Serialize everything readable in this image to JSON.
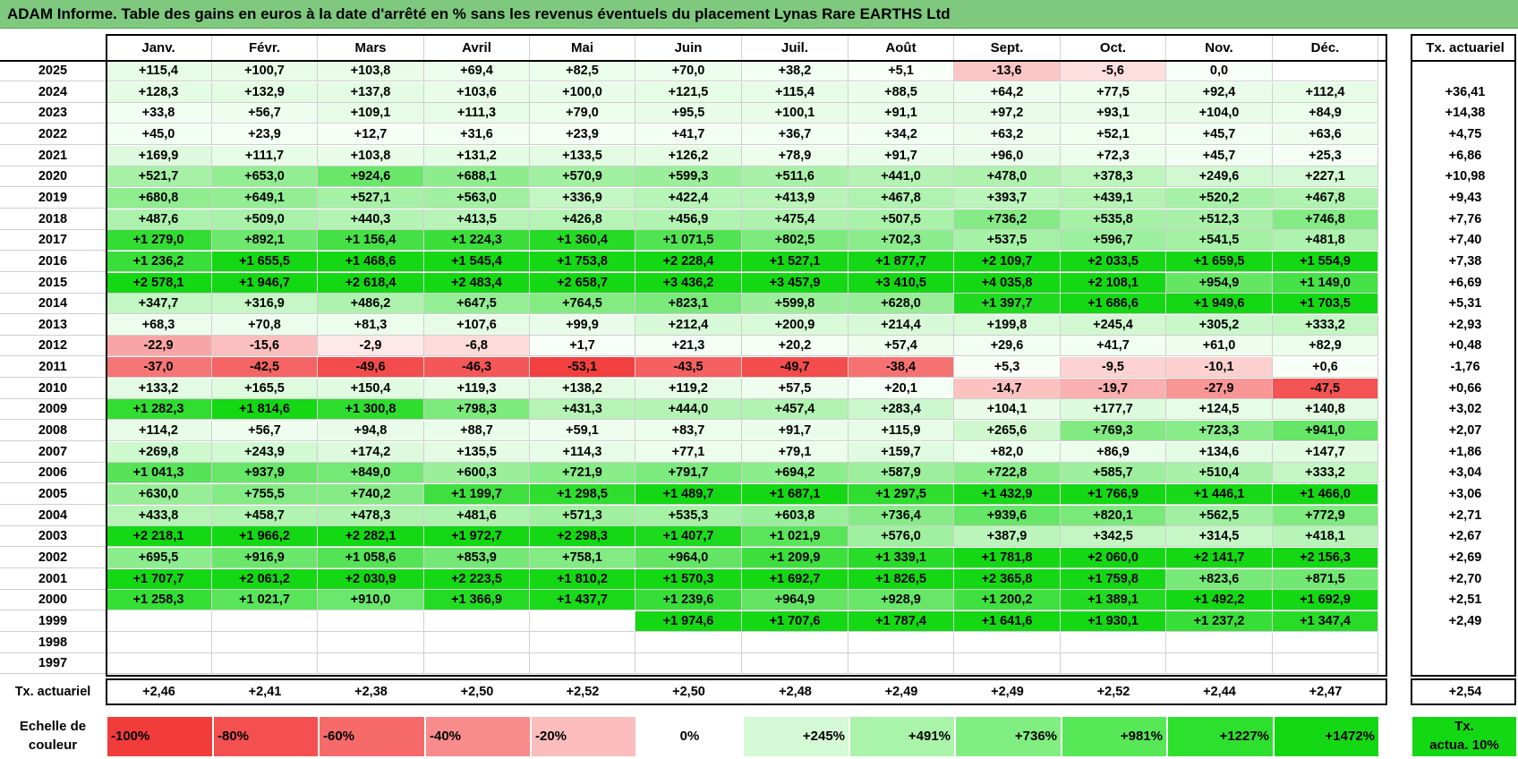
{
  "title": "ADAM Informe. Table des gains en euros à la date d'arrêté en % sans les revenus éventuels du placement Lynas Rare EARTHS Ltd",
  "months": [
    "Janv.",
    "Févr.",
    "Mars",
    "Avril",
    "Mai",
    "Juin",
    "Juil.",
    "Août",
    "Sept.",
    "Oct.",
    "Nov.",
    "Déc."
  ],
  "tx_header": "Tx. actuariel",
  "rows": [
    {
      "year": "2025",
      "values": [
        "+115,4",
        "+100,7",
        "+103,8",
        "+69,4",
        "+82,5",
        "+70,0",
        "+38,2",
        "+5,1",
        "-13,6",
        "-5,6",
        "0,0",
        ""
      ],
      "tx": ""
    },
    {
      "year": "2024",
      "values": [
        "+128,3",
        "+132,9",
        "+137,8",
        "+103,6",
        "+100,0",
        "+121,5",
        "+115,4",
        "+88,5",
        "+64,2",
        "+77,5",
        "+92,4",
        "+112,4"
      ],
      "tx": "+36,41"
    },
    {
      "year": "2023",
      "values": [
        "+33,8",
        "+56,7",
        "+109,1",
        "+111,3",
        "+79,0",
        "+95,5",
        "+100,1",
        "+91,1",
        "+97,2",
        "+93,1",
        "+104,0",
        "+84,9"
      ],
      "tx": "+14,38"
    },
    {
      "year": "2022",
      "values": [
        "+45,0",
        "+23,9",
        "+12,7",
        "+31,6",
        "+23,9",
        "+41,7",
        "+36,7",
        "+34,2",
        "+63,2",
        "+52,1",
        "+45,7",
        "+63,6"
      ],
      "tx": "+4,75"
    },
    {
      "year": "2021",
      "values": [
        "+169,9",
        "+111,7",
        "+103,8",
        "+131,2",
        "+133,5",
        "+126,2",
        "+78,9",
        "+91,7",
        "+96,0",
        "+72,3",
        "+45,7",
        "+25,3"
      ],
      "tx": "+6,86"
    },
    {
      "year": "2020",
      "values": [
        "+521,7",
        "+653,0",
        "+924,6",
        "+688,1",
        "+570,9",
        "+599,3",
        "+511,6",
        "+441,0",
        "+478,0",
        "+378,3",
        "+249,6",
        "+227,1"
      ],
      "tx": "+10,98"
    },
    {
      "year": "2019",
      "values": [
        "+680,8",
        "+649,1",
        "+527,1",
        "+563,0",
        "+336,9",
        "+422,4",
        "+413,9",
        "+467,8",
        "+393,7",
        "+439,1",
        "+520,2",
        "+467,8"
      ],
      "tx": "+9,43"
    },
    {
      "year": "2018",
      "values": [
        "+487,6",
        "+509,0",
        "+440,3",
        "+413,5",
        "+426,8",
        "+456,9",
        "+475,4",
        "+507,5",
        "+736,2",
        "+535,8",
        "+512,3",
        "+746,8"
      ],
      "tx": "+7,76"
    },
    {
      "year": "2017",
      "values": [
        "+1 279,0",
        "+892,1",
        "+1 156,4",
        "+1 224,3",
        "+1 360,4",
        "+1 071,5",
        "+802,5",
        "+702,3",
        "+537,5",
        "+596,7",
        "+541,5",
        "+481,8"
      ],
      "tx": "+7,40"
    },
    {
      "year": "2016",
      "values": [
        "+1 236,2",
        "+1 655,5",
        "+1 468,6",
        "+1 545,4",
        "+1 753,8",
        "+2 228,4",
        "+1 527,1",
        "+1 877,7",
        "+2 109,7",
        "+2 033,5",
        "+1 659,5",
        "+1 554,9"
      ],
      "tx": "+7,38"
    },
    {
      "year": "2015",
      "values": [
        "+2 578,1",
        "+1 946,7",
        "+2 618,4",
        "+2 483,4",
        "+2 658,7",
        "+3 436,2",
        "+3 457,9",
        "+3 410,5",
        "+4 035,8",
        "+2 108,1",
        "+954,9",
        "+1 149,0"
      ],
      "tx": "+6,69"
    },
    {
      "year": "2014",
      "values": [
        "+347,7",
        "+316,9",
        "+486,2",
        "+647,5",
        "+764,5",
        "+823,1",
        "+599,8",
        "+628,0",
        "+1 397,7",
        "+1 686,6",
        "+1 949,6",
        "+1 703,5"
      ],
      "tx": "+5,31"
    },
    {
      "year": "2013",
      "values": [
        "+68,3",
        "+70,8",
        "+81,3",
        "+107,6",
        "+99,9",
        "+212,4",
        "+200,9",
        "+214,4",
        "+199,8",
        "+245,4",
        "+305,2",
        "+333,2"
      ],
      "tx": "+2,93"
    },
    {
      "year": "2012",
      "values": [
        "-22,9",
        "-15,6",
        "-2,9",
        "-6,8",
        "+1,7",
        "+21,3",
        "+20,2",
        "+57,4",
        "+29,6",
        "+41,7",
        "+61,0",
        "+82,9"
      ],
      "tx": "+0,48"
    },
    {
      "year": "2011",
      "values": [
        "-37,0",
        "-42,5",
        "-49,6",
        "-46,3",
        "-53,1",
        "-43,5",
        "-49,7",
        "-38,4",
        "+5,3",
        "-9,5",
        "-10,1",
        "+0,6"
      ],
      "tx": "-1,76"
    },
    {
      "year": "2010",
      "values": [
        "+133,2",
        "+165,5",
        "+150,4",
        "+119,3",
        "+138,2",
        "+119,2",
        "+57,5",
        "+20,1",
        "-14,7",
        "-19,7",
        "-27,9",
        "-47,5"
      ],
      "tx": "+0,66"
    },
    {
      "year": "2009",
      "values": [
        "+1 282,3",
        "+1 814,6",
        "+1 300,8",
        "+798,3",
        "+431,3",
        "+444,0",
        "+457,4",
        "+283,4",
        "+104,1",
        "+177,7",
        "+124,5",
        "+140,8"
      ],
      "tx": "+3,02"
    },
    {
      "year": "2008",
      "values": [
        "+114,2",
        "+56,7",
        "+94,8",
        "+88,7",
        "+59,1",
        "+83,7",
        "+91,7",
        "+115,9",
        "+265,6",
        "+769,3",
        "+723,3",
        "+941,0"
      ],
      "tx": "+2,07"
    },
    {
      "year": "2007",
      "values": [
        "+269,8",
        "+243,9",
        "+174,2",
        "+135,5",
        "+114,3",
        "+77,1",
        "+79,1",
        "+159,7",
        "+82,0",
        "+86,9",
        "+134,6",
        "+147,7"
      ],
      "tx": "+1,86"
    },
    {
      "year": "2006",
      "values": [
        "+1 041,3",
        "+937,9",
        "+849,0",
        "+600,3",
        "+721,9",
        "+791,7",
        "+694,2",
        "+587,9",
        "+722,8",
        "+585,7",
        "+510,4",
        "+333,2"
      ],
      "tx": "+3,04"
    },
    {
      "year": "2005",
      "values": [
        "+630,0",
        "+755,5",
        "+740,2",
        "+1 199,7",
        "+1 298,5",
        "+1 489,7",
        "+1 687,1",
        "+1 297,5",
        "+1 432,9",
        "+1 766,9",
        "+1 446,1",
        "+1 466,0"
      ],
      "tx": "+3,06"
    },
    {
      "year": "2004",
      "values": [
        "+433,8",
        "+458,7",
        "+478,3",
        "+481,6",
        "+571,3",
        "+535,3",
        "+603,8",
        "+736,4",
        "+939,6",
        "+820,1",
        "+562,5",
        "+772,9"
      ],
      "tx": "+2,71"
    },
    {
      "year": "2003",
      "values": [
        "+2 218,1",
        "+1 966,2",
        "+2 282,1",
        "+1 972,7",
        "+2 298,3",
        "+1 407,7",
        "+1 021,9",
        "+576,0",
        "+387,9",
        "+342,5",
        "+314,5",
        "+418,1"
      ],
      "tx": "+2,67"
    },
    {
      "year": "2002",
      "values": [
        "+695,5",
        "+916,9",
        "+1 058,6",
        "+853,9",
        "+758,1",
        "+964,0",
        "+1 209,9",
        "+1 339,1",
        "+1 781,8",
        "+2 060,0",
        "+2 141,7",
        "+2 156,3"
      ],
      "tx": "+2,69"
    },
    {
      "year": "2001",
      "values": [
        "+1 707,7",
        "+2 061,2",
        "+2 030,9",
        "+2 223,5",
        "+1 810,2",
        "+1 570,3",
        "+1 692,7",
        "+1 826,5",
        "+2 365,8",
        "+1 759,8",
        "+823,6",
        "+871,5"
      ],
      "tx": "+2,70"
    },
    {
      "year": "2000",
      "values": [
        "+1 258,3",
        "+1 021,7",
        "+910,0",
        "+1 366,9",
        "+1 437,7",
        "+1 239,6",
        "+964,9",
        "+928,9",
        "+1 200,2",
        "+1 389,1",
        "+1 492,2",
        "+1 692,9"
      ],
      "tx": "+2,51"
    },
    {
      "year": "1999",
      "values": [
        "",
        "",
        "",
        "",
        "",
        "+1 974,6",
        "+1 707,6",
        "+1 787,4",
        "+1 641,6",
        "+1 930,1",
        "+1 237,2",
        "+1 347,4"
      ],
      "tx": "+2,49"
    },
    {
      "year": "1998",
      "values": [
        "",
        "",
        "",
        "",
        "",
        "",
        "",
        "",
        "",
        "",
        "",
        ""
      ],
      "tx": ""
    },
    {
      "year": "1997",
      "values": [
        "",
        "",
        "",
        "",
        "",
        "",
        "",
        "",
        "",
        "",
        "",
        ""
      ],
      "tx": ""
    }
  ],
  "footer": {
    "label": "Tx. actuariel",
    "values": [
      "+2,46",
      "+2,41",
      "+2,38",
      "+2,50",
      "+2,52",
      "+2,50",
      "+2,48",
      "+2,49",
      "+2,49",
      "+2,52",
      "+2,44",
      "+2,47"
    ],
    "total": "+2,54"
  },
  "scale": {
    "label_line1": "Echelle de",
    "label_line2": "couleur",
    "steps": [
      {
        "text": "-100%",
        "color": "#f23c3c",
        "align": "left"
      },
      {
        "text": "-80%",
        "color": "#f45050",
        "align": "left"
      },
      {
        "text": "-60%",
        "color": "#f66a6a",
        "align": "left"
      },
      {
        "text": "-40%",
        "color": "#f88c8c",
        "align": "left"
      },
      {
        "text": "-20%",
        "color": "#fbbcbc",
        "align": "left"
      },
      {
        "text": "0%",
        "color": "#ffffff",
        "align": "center"
      },
      {
        "text": "+245%",
        "color": "#d4f9d4",
        "align": "right"
      },
      {
        "text": "+491%",
        "color": "#aaf4aa",
        "align": "right"
      },
      {
        "text": "+736%",
        "color": "#80ee80",
        "align": "right"
      },
      {
        "text": "+981%",
        "color": "#56e856",
        "align": "right"
      },
      {
        "text": "+1227%",
        "color": "#2ee02e",
        "align": "right"
      },
      {
        "text": "+1472%",
        "color": "#14d814",
        "align": "right"
      }
    ],
    "tx_line1": "Tx.",
    "tx_line2": "actua. 10%",
    "tx_color": "#14d814"
  }
}
